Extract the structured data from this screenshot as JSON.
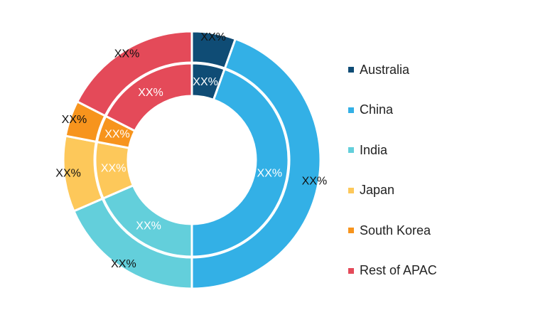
{
  "chart_data": {
    "type": "pie",
    "subtype": "nested-donut",
    "categories": [
      "Australia",
      "China",
      "India",
      "Japan",
      "South Korea",
      "Rest of APAC"
    ],
    "colors": [
      "#0f4c75",
      "#33b0e6",
      "#63cfdb",
      "#fdc85a",
      "#f7941d",
      "#e44a59"
    ],
    "series": [
      {
        "ring": "outer",
        "values": [
          5.5,
          44.5,
          18.5,
          9.5,
          4.5,
          17.5
        ],
        "labels": [
          "XX%",
          "XX%",
          "XX%",
          "XX%",
          "XX%",
          "XX%"
        ]
      },
      {
        "ring": "inner",
        "values": [
          5.5,
          44.5,
          18.5,
          9.5,
          4.5,
          17.5
        ],
        "labels": [
          "XX%",
          "XX%",
          "XX%",
          "XX%",
          "XX%",
          "XX%"
        ]
      }
    ],
    "legend_position": "right"
  }
}
